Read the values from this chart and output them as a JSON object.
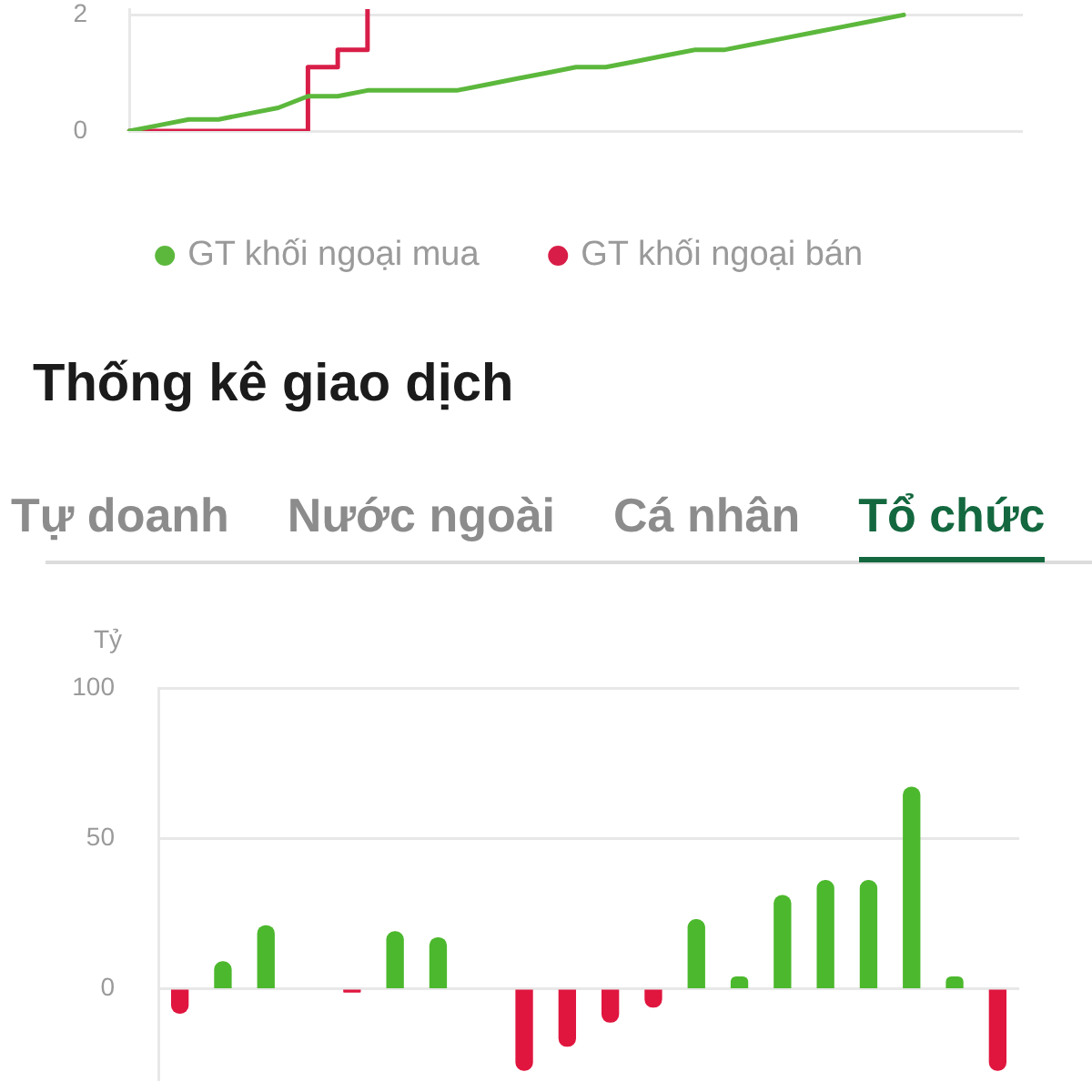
{
  "chart_data": [
    {
      "type": "line",
      "categories": [
        null,
        null,
        null,
        null,
        null,
        null,
        null,
        null,
        null,
        null,
        null,
        null,
        null,
        null,
        null,
        null,
        null,
        null,
        null,
        null,
        null,
        null,
        null,
        null,
        null,
        null,
        null,
        null,
        null,
        null,
        null
      ],
      "series": [
        {
          "name": "GT khối ngoại mua",
          "color": "#5cb83c",
          "values": [
            0,
            0.1,
            0.2,
            0.2,
            0.3,
            0.4,
            0.6,
            0.6,
            0.7,
            0.7,
            0.7,
            0.7,
            0.8,
            0.9,
            1.0,
            1.1,
            1.1,
            1.2,
            1.3,
            1.4,
            1.4,
            1.5,
            1.6,
            1.7,
            1.8,
            1.9,
            2.0,
            null,
            null,
            null,
            null
          ]
        },
        {
          "name": "GT khối ngoại bán",
          "color": "#d81e48",
          "type": "step",
          "values": [
            0,
            0,
            0,
            0,
            0,
            0,
            1.1,
            1.4,
            2.1,
            null,
            null,
            null,
            null,
            null,
            null,
            null,
            null,
            null,
            null,
            null,
            null,
            null,
            null,
            null,
            null,
            null,
            null,
            null,
            null,
            null,
            null
          ]
        }
      ],
      "ylim": [
        0,
        2.1
      ],
      "yticks": [
        0,
        2
      ],
      "grid": "y",
      "tick_labels": "y",
      "legend": "bottom",
      "marker": "none"
    },
    {
      "type": "bar",
      "title": "Thống kê giao dịch",
      "ylabel": "Tỷ",
      "annotations": [
        "Tự doanh",
        "Nước ngoài",
        "Cá nhân",
        "Tổ chức"
      ],
      "categories": [
        null,
        null,
        null,
        null,
        null,
        null,
        null,
        null,
        null,
        null,
        null,
        null,
        null,
        null,
        null,
        null,
        null,
        null,
        null,
        null
      ],
      "values": [
        -8,
        9,
        21,
        null,
        -1,
        19,
        17,
        null,
        -27,
        -19,
        -11,
        -6,
        23,
        4,
        31,
        36,
        36,
        67,
        4,
        -27
      ],
      "colors": [
        "#e0163f",
        "#4cb82d",
        "#4cb82d",
        null,
        "#e0163f",
        "#4cb82d",
        "#4cb82d",
        null,
        "#e0163f",
        "#e0163f",
        "#e0163f",
        "#e0163f",
        "#4cb82d",
        "#4cb82d",
        "#4cb82d",
        "#4cb82d",
        "#4cb82d",
        "#4cb82d",
        "#4cb82d",
        "#e0163f"
      ],
      "ylim": [
        -30,
        100
      ],
      "yticks": [
        0,
        50,
        100
      ],
      "grid": "y",
      "tick_labels": "y"
    }
  ]
}
